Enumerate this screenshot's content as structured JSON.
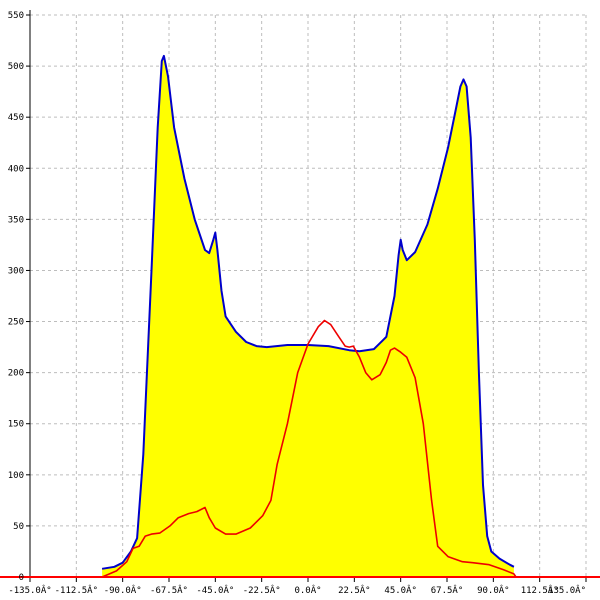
{
  "chart_data": {
    "type": "area",
    "title": "",
    "xlabel": "",
    "ylabel": "",
    "xlim": [
      -135,
      135
    ],
    "ylim": [
      0,
      550
    ],
    "grid": true,
    "legend": "none",
    "xticks": [
      -135,
      -112.5,
      -90,
      -67.5,
      -45,
      -22.5,
      0,
      22.5,
      45,
      67.5,
      90,
      112.5,
      135
    ],
    "xtick_labels": [
      "-135.0Â°",
      "-112.5Â°",
      "-90.0Â°",
      "-67.5Â°",
      "-45.0Â°",
      "-22.5Â°",
      "0.0Â°",
      "22.5Â°",
      "45.0Â°",
      "67.5Â°",
      "90.0Â°",
      "112.5Â°",
      "135.0Â°"
    ],
    "yticks": [
      0,
      50,
      100,
      150,
      200,
      250,
      300,
      350,
      400,
      450,
      500,
      550
    ],
    "ytick_labels": [
      "0",
      "50",
      "100",
      "150",
      "200",
      "250",
      "300",
      "350",
      "400",
      "450",
      "500",
      "550"
    ],
    "series": [
      {
        "color": "#0000cc",
        "fill": "#ffff00",
        "filled": true,
        "points": [
          [
            -100,
            0
          ],
          [
            -100,
            8
          ],
          [
            -94,
            10
          ],
          [
            -90,
            14
          ],
          [
            -86,
            25
          ],
          [
            -83,
            38
          ],
          [
            -80,
            120
          ],
          [
            -76,
            300
          ],
          [
            -73,
            440
          ],
          [
            -71,
            505
          ],
          [
            -70,
            510
          ],
          [
            -68,
            490
          ],
          [
            -65,
            440
          ],
          [
            -60,
            390
          ],
          [
            -55,
            350
          ],
          [
            -50,
            320
          ],
          [
            -48,
            317
          ],
          [
            -46,
            330
          ],
          [
            -45,
            337
          ],
          [
            -44,
            320
          ],
          [
            -42,
            280
          ],
          [
            -40,
            255
          ],
          [
            -35,
            240
          ],
          [
            -30,
            230
          ],
          [
            -25,
            226
          ],
          [
            -20,
            225
          ],
          [
            -10,
            227
          ],
          [
            0,
            227
          ],
          [
            10,
            226
          ],
          [
            20,
            222
          ],
          [
            25,
            221
          ],
          [
            32,
            223
          ],
          [
            38,
            235
          ],
          [
            42,
            275
          ],
          [
            44,
            315
          ],
          [
            45,
            330
          ],
          [
            46,
            320
          ],
          [
            48,
            310
          ],
          [
            52,
            318
          ],
          [
            58,
            345
          ],
          [
            63,
            380
          ],
          [
            68,
            420
          ],
          [
            72,
            460
          ],
          [
            74,
            480
          ],
          [
            75.5,
            487
          ],
          [
            77,
            480
          ],
          [
            79,
            430
          ],
          [
            81,
            330
          ],
          [
            83,
            200
          ],
          [
            85,
            90
          ],
          [
            87,
            40
          ],
          [
            89,
            25
          ],
          [
            93,
            18
          ],
          [
            98,
            12
          ],
          [
            100,
            10
          ],
          [
            100,
            0
          ]
        ]
      },
      {
        "color": "#ee0000",
        "filled": false,
        "points": [
          [
            -100,
            0
          ],
          [
            -93,
            6
          ],
          [
            -88,
            15
          ],
          [
            -85,
            28
          ],
          [
            -82,
            30
          ],
          [
            -79,
            40
          ],
          [
            -76,
            42
          ],
          [
            -72,
            43
          ],
          [
            -67,
            50
          ],
          [
            -63,
            58
          ],
          [
            -58,
            62
          ],
          [
            -54,
            64
          ],
          [
            -50,
            68
          ],
          [
            -48,
            58
          ],
          [
            -45,
            48
          ],
          [
            -40,
            42
          ],
          [
            -35,
            42
          ],
          [
            -28,
            48
          ],
          [
            -22,
            60
          ],
          [
            -18,
            75
          ],
          [
            -15,
            110
          ],
          [
            -10,
            150
          ],
          [
            -5,
            200
          ],
          [
            0,
            228
          ],
          [
            5,
            245
          ],
          [
            8,
            251
          ],
          [
            11,
            247
          ],
          [
            15,
            235
          ],
          [
            18,
            226
          ],
          [
            20,
            225
          ],
          [
            22,
            226
          ],
          [
            25,
            215
          ],
          [
            28,
            200
          ],
          [
            31,
            193
          ],
          [
            35,
            198
          ],
          [
            38,
            210
          ],
          [
            40,
            222
          ],
          [
            42,
            224
          ],
          [
            45,
            220
          ],
          [
            48,
            215
          ],
          [
            52,
            195
          ],
          [
            56,
            150
          ],
          [
            60,
            75
          ],
          [
            63,
            30
          ],
          [
            68,
            20
          ],
          [
            75,
            15
          ],
          [
            80,
            14
          ],
          [
            88,
            12
          ],
          [
            95,
            7
          ],
          [
            100,
            3
          ],
          [
            101,
            0
          ]
        ]
      }
    ]
  }
}
